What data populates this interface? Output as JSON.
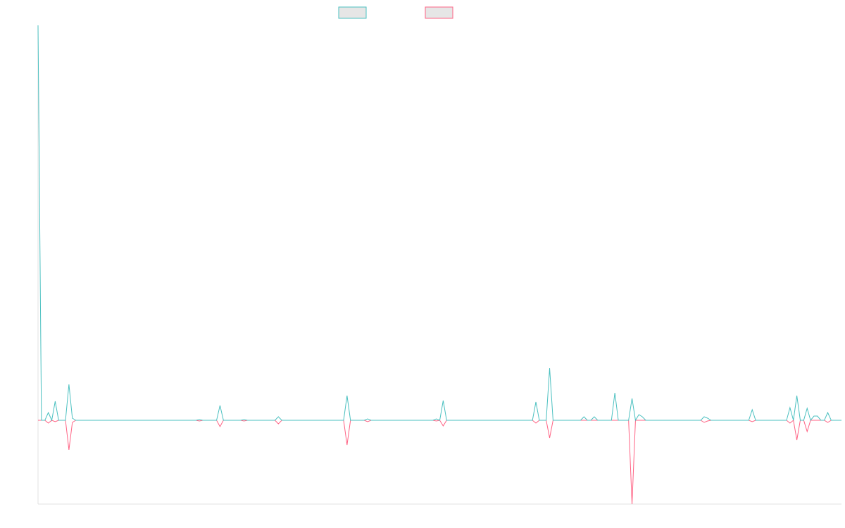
{
  "chart_data": {
    "type": "line",
    "x": [
      0,
      1,
      2,
      3,
      4,
      5,
      6,
      8,
      9,
      10,
      11,
      12,
      46,
      47,
      48,
      52,
      53,
      54,
      59,
      60,
      61,
      69,
      70,
      71,
      89,
      90,
      91,
      95,
      96,
      97,
      115,
      116,
      117,
      118,
      119,
      144,
      145,
      146,
      148,
      149,
      150,
      158,
      159,
      160,
      161,
      162,
      163,
      167,
      168,
      169,
      172,
      173,
      174,
      175,
      176,
      177,
      193,
      194,
      195,
      196,
      207,
      208,
      209,
      218,
      219,
      220,
      221,
      222,
      223,
      224,
      225,
      226,
      227,
      228,
      229,
      230,
      231,
      234
    ],
    "series": [
      {
        "color": "#4bc0c0",
        "values": [
          561,
          0,
          0,
          11,
          0,
          27,
          0,
          0,
          51,
          3,
          0,
          0,
          0,
          1,
          0,
          0,
          21,
          0,
          0,
          1,
          0,
          0,
          5,
          0,
          0,
          35,
          0,
          0,
          2,
          0,
          0,
          2,
          0,
          28,
          0,
          0,
          26,
          0,
          0,
          74,
          0,
          0,
          5,
          0,
          0,
          5,
          0,
          0,
          39,
          0,
          0,
          31,
          0,
          8,
          5,
          0,
          0,
          5,
          3,
          0,
          0,
          15,
          0,
          0,
          18,
          0,
          35,
          0,
          0,
          17,
          0,
          6,
          6,
          0,
          0,
          11,
          0,
          0
        ]
      },
      {
        "color": "#ff6384",
        "values": [
          0,
          0,
          0,
          -4,
          0,
          -2,
          0,
          0,
          -42,
          -3,
          0,
          0,
          0,
          -1,
          0,
          0,
          -9,
          0,
          0,
          -1,
          0,
          0,
          -5,
          0,
          0,
          -35,
          0,
          0,
          -2,
          0,
          0,
          -1,
          0,
          -8,
          0,
          0,
          -4,
          0,
          0,
          -25,
          0,
          0,
          0,
          0,
          0,
          0,
          0,
          0,
          0,
          0,
          0,
          -119,
          0,
          0,
          0,
          0,
          0,
          -3,
          -1,
          0,
          0,
          -2,
          0,
          0,
          -4,
          0,
          -28,
          0,
          0,
          -16,
          0,
          0,
          0,
          0,
          0,
          -3,
          0,
          0
        ]
      }
    ],
    "xlim": [
      0,
      234
    ],
    "ylim": [
      -119,
      561
    ]
  }
}
